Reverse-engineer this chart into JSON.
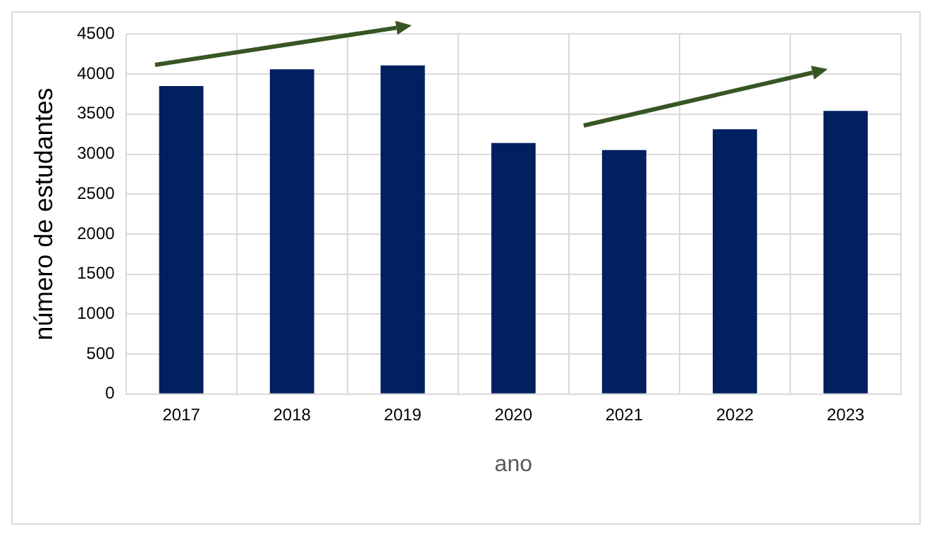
{
  "chart_data": {
    "type": "bar",
    "xlabel": "ano",
    "ylabel": "número de estudantes",
    "categories": [
      "2017",
      "2018",
      "2019",
      "2020",
      "2021",
      "2022",
      "2023"
    ],
    "values": [
      3850,
      4060,
      4110,
      3140,
      3050,
      3310,
      3540
    ],
    "color": "#002060",
    "ylim": [
      0,
      4500
    ],
    "yticks": [
      0,
      500,
      1000,
      1500,
      2000,
      2500,
      3000,
      3500,
      4000,
      4500
    ],
    "grid": true
  }
}
